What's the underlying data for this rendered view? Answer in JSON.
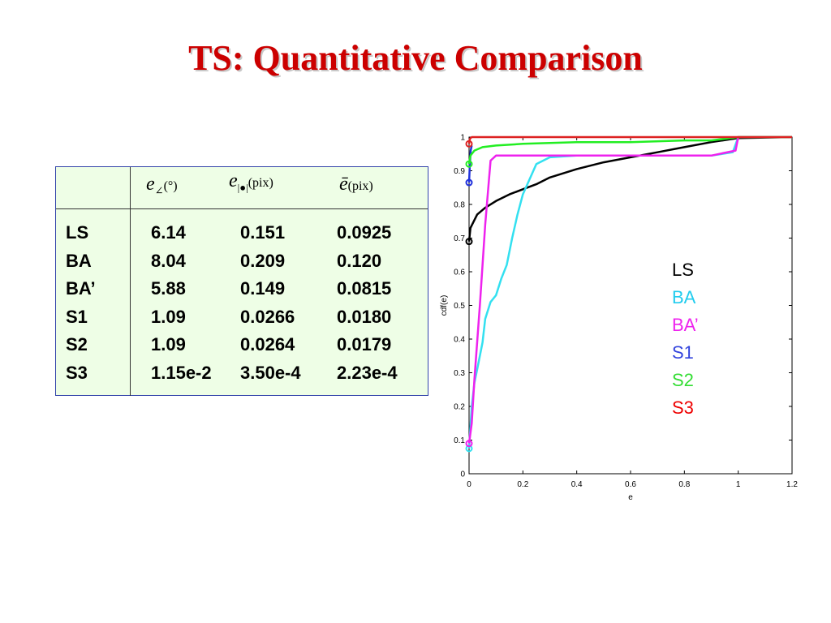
{
  "title": "TS: Quantitative Comparison",
  "table": {
    "headers": [
      {
        "symbol": "e",
        "sub": "∠",
        "unit": "(°)"
      },
      {
        "symbol": "e",
        "sub": "|●|",
        "unit": "(pix)"
      },
      {
        "symbol": "ē",
        "sub": "",
        "unit": "(pix)"
      }
    ],
    "rows": [
      {
        "name": "LS",
        "values": [
          "6.14",
          "0.151",
          "0.0925"
        ]
      },
      {
        "name": "BA",
        "values": [
          "8.04",
          "0.209",
          "0.120"
        ]
      },
      {
        "name": "BA’",
        "values": [
          "5.88",
          "0.149",
          "0.0815"
        ]
      },
      {
        "name": "S1",
        "values": [
          "1.09",
          "0.0266",
          "0.0180"
        ]
      },
      {
        "name": "S2",
        "values": [
          "1.09",
          "0.0264",
          "0.0179"
        ]
      },
      {
        "name": "S3",
        "values": [
          "1.15e-2",
          "3.50e-4",
          "2.23e-4"
        ]
      }
    ]
  },
  "chart_data": {
    "type": "line",
    "title": "",
    "xlabel": "e",
    "ylabel": "cdf(e)",
    "xlim": [
      0,
      1.2
    ],
    "ylim": [
      0,
      1
    ],
    "xticks": [
      "0",
      "0.2",
      "0.4",
      "0.6",
      "0.8",
      "1",
      "1.2"
    ],
    "yticks": [
      "0",
      "0.1",
      "0.2",
      "0.3",
      "0.4",
      "0.5",
      "0.6",
      "0.7",
      "0.8",
      "0.9",
      "1"
    ],
    "grid": false,
    "legend_position": "right",
    "series": [
      {
        "name": "LS",
        "color": "#000000",
        "label_color": "#000000",
        "x": [
          0,
          0.005,
          0.03,
          0.06,
          0.1,
          0.15,
          0.2,
          0.25,
          0.3,
          0.4,
          0.5,
          0.6,
          0.7,
          0.8,
          0.9,
          1.0,
          1.2
        ],
        "y": [
          0.69,
          0.73,
          0.77,
          0.79,
          0.81,
          0.83,
          0.845,
          0.86,
          0.88,
          0.905,
          0.925,
          0.94,
          0.955,
          0.97,
          0.985,
          0.997,
          1.0
        ]
      },
      {
        "name": "BA",
        "color": "#33e0f0",
        "label_color": "#22ccee",
        "x": [
          0,
          0.01,
          0.02,
          0.03,
          0.04,
          0.05,
          0.06,
          0.08,
          0.1,
          0.12,
          0.14,
          0.16,
          0.18,
          0.2,
          0.25,
          0.3,
          0.4,
          0.6,
          0.9,
          0.98,
          1.0,
          1.2
        ],
        "y": [
          0.075,
          0.2,
          0.27,
          0.31,
          0.35,
          0.39,
          0.46,
          0.51,
          0.53,
          0.58,
          0.62,
          0.7,
          0.77,
          0.83,
          0.92,
          0.94,
          0.945,
          0.945,
          0.945,
          0.955,
          1.0,
          1.0
        ]
      },
      {
        "name": "BA’",
        "color": "#ee22ee",
        "label_color": "#ee22ee",
        "x": [
          0,
          0.01,
          0.02,
          0.04,
          0.06,
          0.08,
          0.1,
          0.3,
          0.6,
          0.9,
          0.99,
          1.0,
          1.2
        ],
        "y": [
          0.09,
          0.15,
          0.28,
          0.5,
          0.74,
          0.93,
          0.945,
          0.945,
          0.945,
          0.945,
          0.96,
          1.0,
          1.0
        ]
      },
      {
        "name": "S1",
        "color": "#2233dd",
        "label_color": "#3344dd",
        "x": [
          0,
          0.003,
          0.006,
          0.01
        ],
        "y": [
          0.865,
          0.92,
          0.96,
          0.975
        ]
      },
      {
        "name": "S2",
        "color": "#22ee22",
        "label_color": "#33dd33",
        "x": [
          0,
          0.005,
          0.02,
          0.05,
          0.1,
          0.2,
          0.4,
          0.6,
          0.8,
          0.9,
          1.0,
          1.2
        ],
        "y": [
          0.92,
          0.945,
          0.96,
          0.97,
          0.975,
          0.98,
          0.985,
          0.985,
          0.99,
          0.99,
          1.0,
          1.0
        ]
      },
      {
        "name": "S3",
        "color": "#dd2222",
        "label_color": "#ee0000",
        "x": [
          0,
          0.003,
          0.01,
          1.2
        ],
        "y": [
          0.98,
          0.995,
          1.0,
          1.0
        ]
      }
    ]
  }
}
